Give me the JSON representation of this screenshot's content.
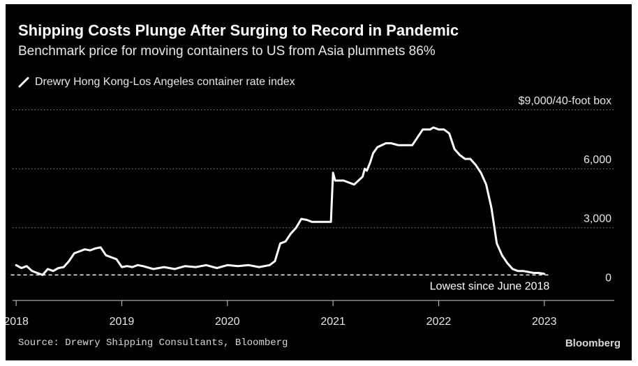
{
  "title": "Shipping Costs Plunge After Surging to Record in Pandemic",
  "subtitle": "Benchmark price for moving containers to US from Asia plummets 86%",
  "source": "Source: Drewry Shipping Consultants, Bloomberg",
  "brand": "Bloomberg",
  "colors": {
    "background": "#000000",
    "line": "#ffffff",
    "grid": "#8a8a8a",
    "text": "#ffffff"
  },
  "chart_data": {
    "type": "line",
    "series": [
      {
        "name": "Drewry Hong Kong-Los Angeles container rate index",
        "x": [
          2018.0,
          2018.05,
          2018.1,
          2018.15,
          2018.2,
          2018.25,
          2018.3,
          2018.35,
          2018.4,
          2018.45,
          2018.5,
          2018.55,
          2018.6,
          2018.65,
          2018.7,
          2018.75,
          2018.8,
          2018.85,
          2018.9,
          2018.95,
          2019.0,
          2019.05,
          2019.1,
          2019.15,
          2019.2,
          2019.3,
          2019.4,
          2019.5,
          2019.6,
          2019.7,
          2019.8,
          2019.9,
          2020.0,
          2020.1,
          2020.2,
          2020.3,
          2020.4,
          2020.45,
          2020.5,
          2020.55,
          2020.6,
          2020.65,
          2020.7,
          2020.75,
          2020.8,
          2020.85,
          2020.9,
          2020.98,
          2021.0,
          2021.02,
          2021.1,
          2021.2,
          2021.28,
          2021.3,
          2021.32,
          2021.35,
          2021.38,
          2021.42,
          2021.5,
          2021.55,
          2021.62,
          2021.65,
          2021.75,
          2021.85,
          2021.92,
          2021.95,
          2022.0,
          2022.05,
          2022.1,
          2022.15,
          2022.2,
          2022.25,
          2022.3,
          2022.35,
          2022.4,
          2022.45,
          2022.5,
          2022.55,
          2022.6,
          2022.65,
          2022.7,
          2022.75,
          2022.8,
          2022.85,
          2022.9,
          2022.95,
          2023.0
        ],
        "y": [
          1100,
          950,
          1050,
          800,
          700,
          600,
          900,
          800,
          950,
          1000,
          1300,
          1700,
          1800,
          1900,
          1850,
          1950,
          2000,
          1600,
          1500,
          1400,
          1000,
          1050,
          1000,
          1100,
          1050,
          900,
          1000,
          900,
          1050,
          1000,
          1100,
          950,
          1100,
          1050,
          1100,
          1000,
          1100,
          1300,
          2200,
          2300,
          2700,
          3000,
          3450,
          3400,
          3300,
          3300,
          3300,
          3300,
          5800,
          5400,
          5400,
          5200,
          5600,
          6000,
          5900,
          6300,
          6800,
          7100,
          7300,
          7300,
          7200,
          7200,
          7200,
          8000,
          8000,
          8100,
          8000,
          8000,
          7800,
          7000,
          6700,
          6500,
          6500,
          6200,
          5800,
          5200,
          4000,
          2200,
          1600,
          1200,
          900,
          800,
          800,
          750,
          700,
          700,
          650
        ]
      }
    ],
    "xlim": [
      2017.9,
      2023.55
    ],
    "ylim": [
      -700,
      8700
    ],
    "x_ticks": [
      2018,
      2019,
      2020,
      2021,
      2022,
      2023
    ],
    "x_tick_labels": [
      "2018",
      "2019",
      "2020",
      "2021",
      "2022",
      "2023"
    ],
    "y_ticks": [
      0,
      3000,
      6000,
      9000
    ],
    "y_tick_labels": [
      "0",
      "3,000",
      "6,000",
      "$9,000/40-foot box"
    ],
    "gridlines": "horizontal dotted",
    "reference_line": {
      "value": 600,
      "label": "Lowest since June 2018",
      "style": "dashed"
    },
    "legend": {
      "label": "Drewry Hong Kong-Los Angeles container rate index",
      "position": "top-left"
    }
  }
}
